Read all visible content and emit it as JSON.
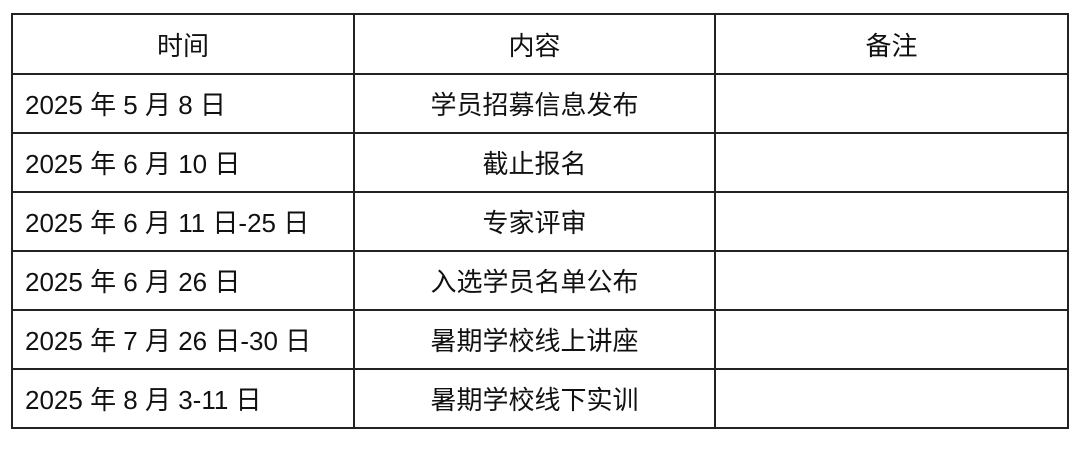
{
  "table": {
    "headers": [
      "时间",
      "内容",
      "备注"
    ],
    "rows": [
      {
        "time": "2025 年 5 月 8 日",
        "content": "学员招募信息发布",
        "note": ""
      },
      {
        "time": "2025 年 6 月 10 日",
        "content": "截止报名",
        "note": ""
      },
      {
        "time": "2025 年 6 月 11 日-25 日",
        "content": "专家评审",
        "note": ""
      },
      {
        "time": "2025 年 6 月 26 日",
        "content": "入选学员名单公布",
        "note": ""
      },
      {
        "time": "2025 年 7 月 26 日-30 日",
        "content": "暑期学校线上讲座",
        "note": ""
      },
      {
        "time": "2025 年 8 月 3-11 日",
        "content": "暑期学校线下实训",
        "note": ""
      }
    ]
  }
}
